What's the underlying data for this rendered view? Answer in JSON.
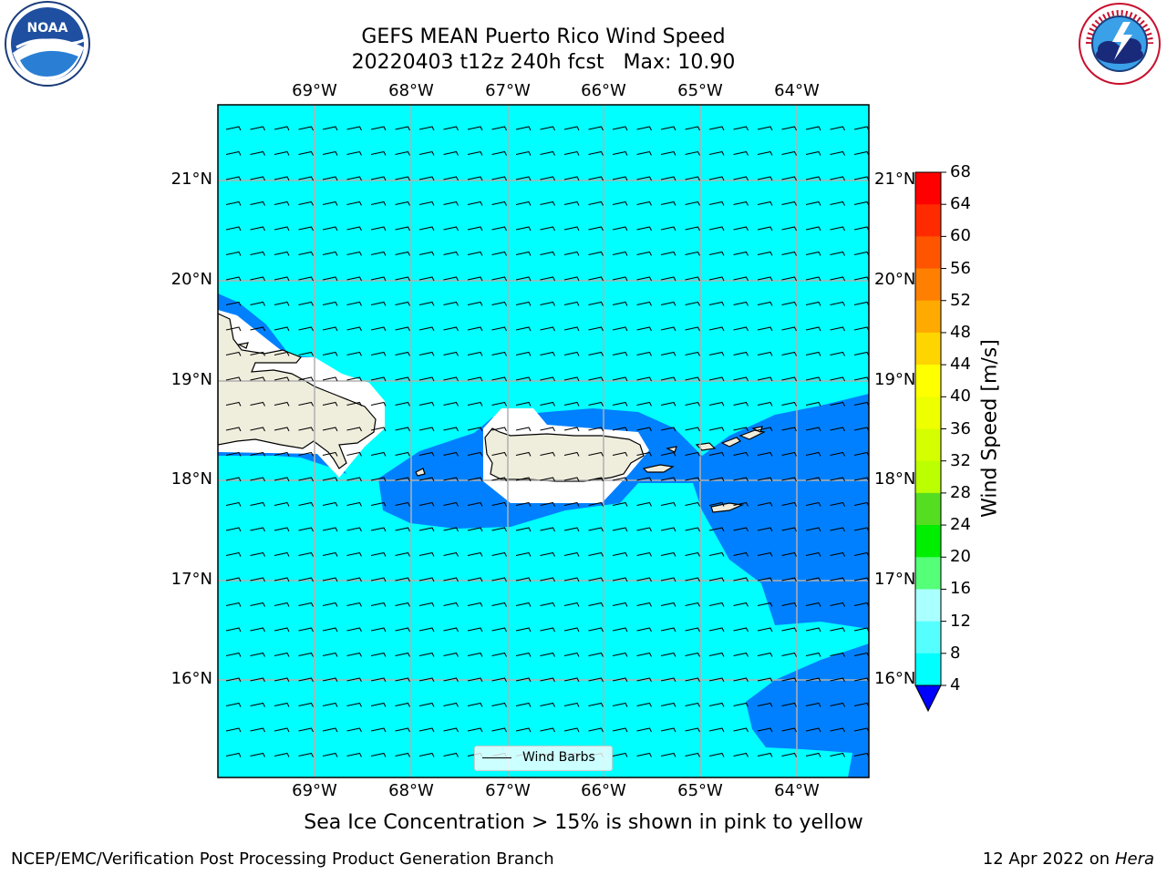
{
  "title": {
    "line1": "GEFS MEAN Puerto Rico Wind Speed",
    "line2": "20220403 t12z 240h fcst   Max: 10.90"
  },
  "logos": {
    "left": "NOAA",
    "right": "NATIONAL WEATHER SERVICE"
  },
  "map": {
    "lon_labels": [
      "69°W",
      "68°W",
      "67°W",
      "66°W",
      "65°W",
      "64°W"
    ],
    "lat_labels": [
      "21°N",
      "20°N",
      "19°N",
      "18°N",
      "17°N",
      "16°N"
    ],
    "background_color": "#00ffff",
    "low_wind_color": "#0080ff",
    "land_color": "#efeddc",
    "legend_label": "Wind Barbs"
  },
  "colorbar": {
    "label": "Wind Speed [m/s]",
    "ticks": [
      "68",
      "64",
      "60",
      "56",
      "52",
      "48",
      "44",
      "40",
      "36",
      "32",
      "28",
      "24",
      "20",
      "16",
      "12",
      "8",
      "4"
    ],
    "colors": [
      "#ff0000",
      "#ff2a00",
      "#ff5500",
      "#ff8000",
      "#ffaa00",
      "#ffd500",
      "#ffff00",
      "#eeff00",
      "#d5ff00",
      "#bbff00",
      "#55dd22",
      "#00ee00",
      "#55ff77",
      "#aaffff",
      "#55ffff",
      "#00ffff",
      "#0080ff"
    ],
    "extend_color": "#0000ff"
  },
  "subtitle": "Sea Ice Concentration > 15% is shown in pink to yellow",
  "footer": {
    "left": "NCEP/EMC/Verification Post Processing Product Generation Branch",
    "date": "12 Apr 2022 on",
    "machine": "Hera"
  }
}
